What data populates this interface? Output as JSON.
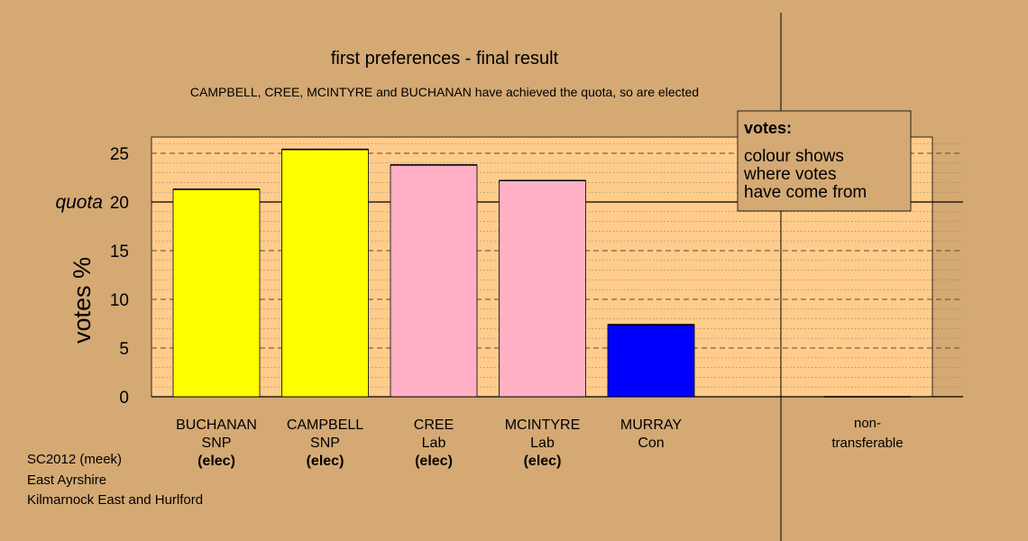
{
  "chart_data": {
    "type": "bar",
    "title": "first preferences - final result",
    "subtitle": "CAMPBELL, CREE, MCINTYRE and BUCHANAN have achieved the quota, so are elected",
    "ylabel": "votes %",
    "xlabel": "",
    "ylim": [
      0,
      26.7
    ],
    "yticks": [
      0,
      5,
      10,
      15,
      20,
      25
    ],
    "quota_label": "quota",
    "quota_value": 20,
    "grid": true,
    "bars": [
      {
        "name": "BUCHANAN",
        "party": "SNP",
        "status": "(elec)",
        "value": 21.3,
        "color": "#ffff00"
      },
      {
        "name": "CAMPBELL",
        "party": "SNP",
        "status": "(elec)",
        "value": 25.4,
        "color": "#ffff00"
      },
      {
        "name": "CREE",
        "party": "Lab",
        "status": "(elec)",
        "value": 23.8,
        "color": "#ffb0c4"
      },
      {
        "name": "MCINTYRE",
        "party": "Lab",
        "status": "(elec)",
        "value": 22.2,
        "color": "#ffb0c4"
      },
      {
        "name": "MURRAY",
        "party": "Con",
        "status": "",
        "value": 7.4,
        "color": "#0000ff"
      }
    ],
    "nontransferable": {
      "label_line1": "non-",
      "label_line2": "transferable",
      "value": 0
    },
    "legend": {
      "title": "votes:",
      "lines": [
        "colour shows",
        "where votes",
        "have come from"
      ],
      "placement": "top-right"
    }
  },
  "footer": {
    "lines": [
      "SC2012 (meek)",
      "East Ayrshire",
      "Kilmarnock East and Hurlford"
    ]
  },
  "colors": {
    "background": "#d4a974",
    "plot_background": "#ffcc8c"
  }
}
